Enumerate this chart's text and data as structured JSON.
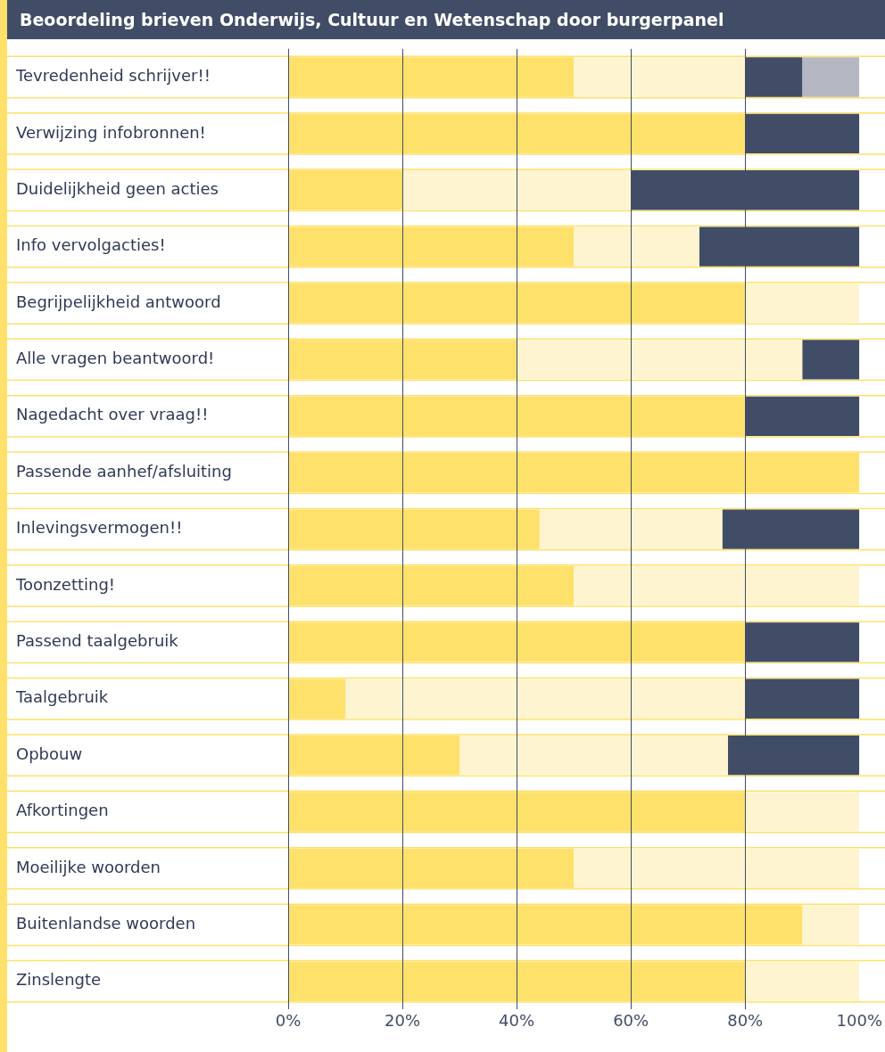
{
  "chart_data": {
    "type": "bar",
    "title": "Beoordeling brieven Onderwijs, Cultuur en Wetenschap door burgerpanel",
    "orientation": "horizontal",
    "stacked": true,
    "grid": "x",
    "legend": false,
    "categories": [
      "Tevredenheid schrijver!!",
      "Verwijzing infobronnen!",
      "Duidelijkheid geen acties",
      "Info vervolgacties!",
      "Begrijpelijkheid antwoord",
      "Alle vragen beantwoord!",
      "Nagedacht over vraag!!",
      "Passende aanhef/afsluiting",
      "Inlevingsvermogen!!",
      "Toonzetting!",
      "Passend taalgebruik",
      "Taalgebruik",
      "Opbouw",
      "Afkortingen",
      "Moeilijke woorden",
      "Buitenlandse woorden",
      "Zinslengte"
    ],
    "series": [
      {
        "color": "#fee16b",
        "values": [
          50,
          80,
          20,
          50,
          80,
          40,
          80,
          100,
          44,
          50,
          80,
          10,
          30,
          80,
          50,
          90,
          80
        ]
      },
      {
        "color": "#fef5d0",
        "values": [
          30,
          0,
          40,
          22,
          20,
          50,
          0,
          0,
          32,
          50,
          0,
          70,
          47,
          20,
          50,
          10,
          20
        ]
      },
      {
        "color": "#414d66",
        "values": [
          10,
          20,
          40,
          28,
          0,
          10,
          20,
          0,
          24,
          0,
          20,
          20,
          23,
          0,
          0,
          0,
          0
        ]
      },
      {
        "color": "#b5b8c3",
        "values": [
          10,
          0,
          0,
          0,
          0,
          0,
          0,
          0,
          0,
          0,
          0,
          0,
          0,
          0,
          0,
          0,
          0
        ]
      }
    ],
    "xlim": [
      0,
      100
    ],
    "xticks": [
      {
        "value": 0,
        "label": "0%"
      },
      {
        "value": 20,
        "label": "20%"
      },
      {
        "value": 40,
        "label": "40%"
      },
      {
        "value": 60,
        "label": "60%"
      },
      {
        "value": 80,
        "label": "80%"
      },
      {
        "value": 100,
        "label": "100%"
      }
    ]
  }
}
